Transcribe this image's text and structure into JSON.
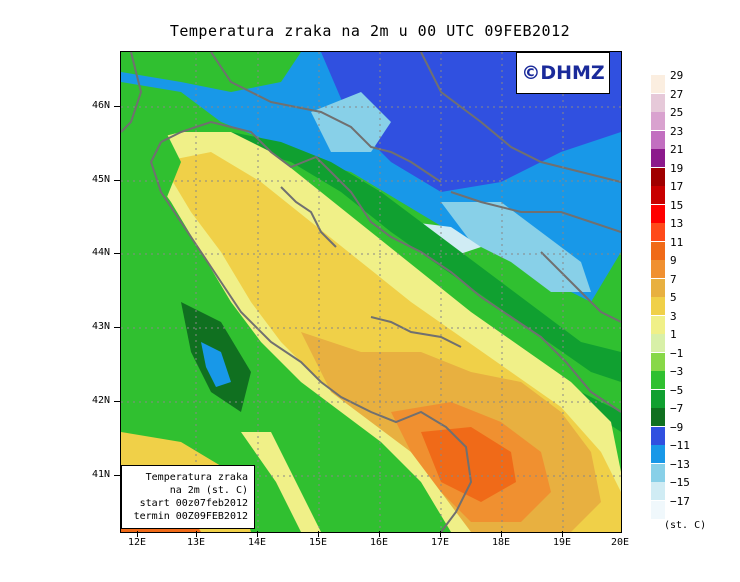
{
  "title": "Temperatura zraka na 2m u 00 UTC 09FEB2012",
  "logo": "©DHMZ",
  "infobox": {
    "line1": "Temperatura zraka",
    "line2": "na 2m (st. C)",
    "line3": "start 00z07feb2012",
    "line4": "termin 00Z09FEB2012"
  },
  "lat_labels": [
    "46N",
    "45N",
    "44N",
    "43N",
    "42N",
    "41N"
  ],
  "lon_labels": [
    "12E",
    "13E",
    "14E",
    "15E",
    "16E",
    "17E",
    "18E",
    "19E",
    "20E"
  ],
  "legend": {
    "unit": "(st. C)",
    "levels": [
      "29",
      "27",
      "25",
      "23",
      "21",
      "19",
      "17",
      "15",
      "13",
      "11",
      "9",
      "7",
      "5",
      "3",
      "1",
      "−1",
      "−3",
      "−5",
      "−7",
      "−9",
      "−11",
      "−13",
      "−15",
      "−17"
    ],
    "colors": [
      "#fbeee0",
      "#e6c9d9",
      "#d9a2cf",
      "#c26fc0",
      "#8c1a8c",
      "#a00000",
      "#c80000",
      "#ff0000",
      "#ff4a1a",
      "#f06a18",
      "#f09030",
      "#e8b040",
      "#f0d048",
      "#f0f088",
      "#d8f0a8",
      "#88d848",
      "#30c030",
      "#10a030",
      "#107020",
      "#3050e0",
      "#1898e8",
      "#88d0e8",
      "#d0ecf4",
      "#f0f8fc"
    ]
  }
}
